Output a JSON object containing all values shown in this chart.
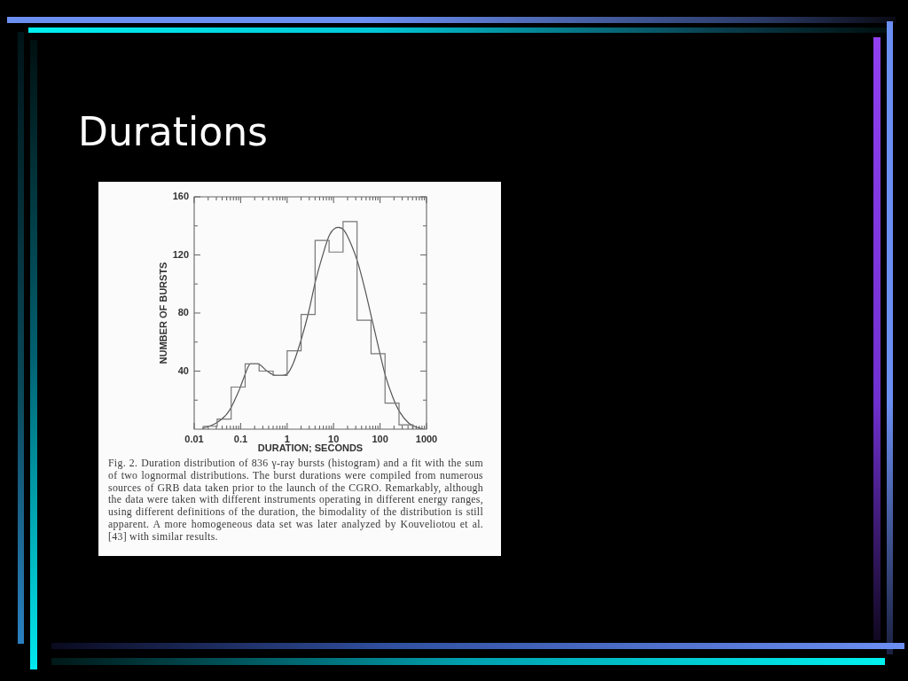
{
  "chart_data": {
    "type": "histogram",
    "title": "Durations",
    "xlabel": "DURATION; SECONDS",
    "ylabel": "NUMBER OF BURSTS",
    "log": "x",
    "xlim": [
      0.01,
      1000
    ],
    "xticks": [
      0.01,
      {
        "value": 0.02,
        "label": null
      },
      {
        "value": 0.03,
        "label": null
      },
      {
        "value": 0.04,
        "label": null
      },
      {
        "value": 0.05,
        "label": null
      },
      {
        "value": 0.06,
        "label": null
      },
      {
        "value": 0.07,
        "label": null
      },
      {
        "value": 0.08,
        "label": null
      },
      {
        "value": 0.09,
        "label": null
      },
      0.1,
      {
        "value": 0.2,
        "label": null
      },
      {
        "value": 0.3,
        "label": null
      },
      {
        "value": 0.4,
        "label": null
      },
      {
        "value": 0.5,
        "label": null
      },
      {
        "value": 0.6,
        "label": null
      },
      {
        "value": 0.7,
        "label": null
      },
      {
        "value": 0.8,
        "label": null
      },
      {
        "value": 0.9,
        "label": null
      },
      1,
      {
        "value": 2,
        "label": null
      },
      {
        "value": 3,
        "label": null
      },
      {
        "value": 4,
        "label": null
      },
      {
        "value": 5,
        "label": null
      },
      {
        "value": 6,
        "label": null
      },
      {
        "value": 7,
        "label": null
      },
      {
        "value": 8,
        "label": null
      },
      {
        "value": 9,
        "label": null
      },
      10,
      {
        "value": 20,
        "label": null
      },
      {
        "value": 30,
        "label": null
      },
      {
        "value": 40,
        "label": null
      },
      {
        "value": 50,
        "label": null
      },
      {
        "value": 60,
        "label": null
      },
      {
        "value": 70,
        "label": null
      },
      {
        "value": 80,
        "label": null
      },
      {
        "value": 90,
        "label": null
      },
      100,
      {
        "value": 200,
        "label": null
      },
      {
        "value": 300,
        "label": null
      },
      {
        "value": 400,
        "label": null
      },
      {
        "value": 500,
        "label": null
      },
      {
        "value": 600,
        "label": null
      },
      {
        "value": 700,
        "label": null
      },
      {
        "value": 800,
        "label": null
      },
      {
        "value": 900,
        "label": null
      },
      1000
    ],
    "ylim": [
      0,
      160
    ],
    "yticks": [
      {
        "value": 20,
        "label": null
      },
      40,
      {
        "value": 60,
        "label": null
      },
      80,
      {
        "value": 100,
        "label": null
      },
      120,
      {
        "value": 140,
        "label": null
      },
      160
    ],
    "bins": [
      0.015625,
      0.03125,
      0.0625,
      0.125,
      0.25,
      0.5,
      1,
      2,
      4,
      8,
      16,
      32,
      64,
      128,
      256,
      512
    ],
    "values": [
      2,
      7,
      29,
      45,
      40,
      37,
      54,
      79,
      130,
      122,
      143,
      75,
      52,
      18,
      3
    ],
    "color": "#777777",
    "series": [
      {
        "type": "line",
        "color": "#555555",
        "x": [
          0.015,
          0.029,
          0.046,
          0.06,
          0.077,
          0.096,
          0.122,
          0.162,
          0.235,
          0.37,
          0.575,
          0.776,
          1.0,
          1.38,
          2.02,
          2.87,
          4.09,
          5.98,
          8.26,
          12.5,
          16.7,
          24.1,
          33.8,
          46.7,
          64.4,
          90.2,
          130,
          188,
          263,
          421,
          653,
          870
        ],
        "values": [
          0.5,
          4,
          9,
          14,
          21,
          28,
          37,
          45,
          45,
          40,
          37,
          37,
          38,
          46,
          62,
          80,
          102,
          121,
          134,
          139,
          137,
          127,
          114,
          97,
          78,
          58,
          37,
          22,
          12,
          4,
          1,
          0
        ]
      }
    ],
    "marker": "none",
    "annotations": [
      "Fig. 2. Duration distribution of 836 γ-ray bursts (histogram) and a fit with the sum of two lognormal distributions. The burst durations were compiled from numerous sources of GRB data taken prior to the launch of the CGRO. Remarkably, although the data were taken with different instruments operating in different energy ranges, using different definitions of the duration, the bimodality of the distribution is still apparent. A more homogeneous data set was later analyzed by Kouveliotou et al. [43] with similar results."
    ]
  }
}
